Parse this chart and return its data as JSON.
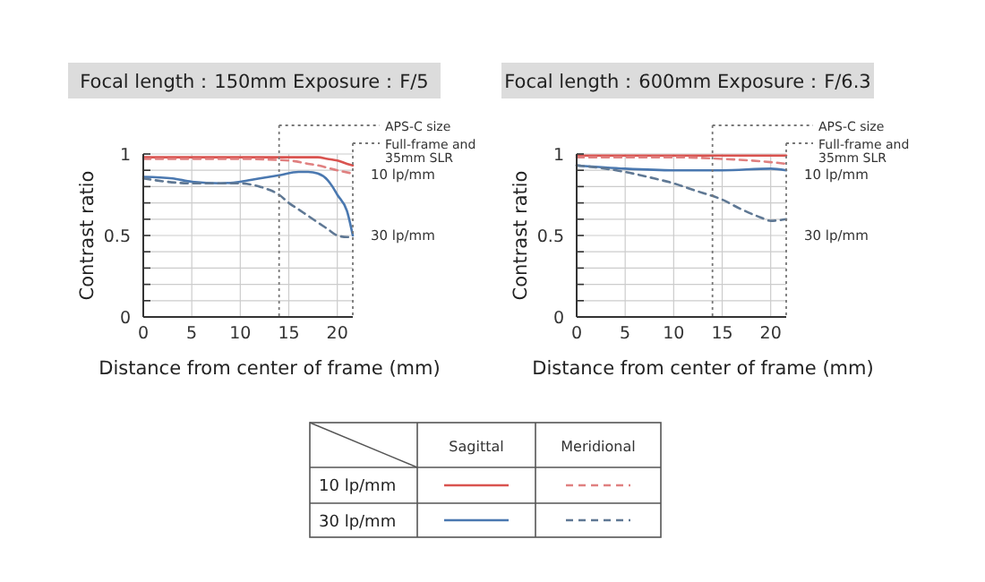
{
  "chart_data": [
    {
      "type": "line",
      "title": "Focal length：150mm  Exposure：F/5",
      "xlabel": "Distance from center of frame (mm)",
      "ylabel": "Contrast ratio",
      "xlim": [
        0,
        21.6
      ],
      "xticks": [
        0,
        5,
        10,
        15,
        20
      ],
      "ylim": [
        0,
        1
      ],
      "yticks": [
        0,
        {
          "value": 0.1,
          "label": null
        },
        {
          "value": 0.2,
          "label": null
        },
        {
          "value": 0.3,
          "label": null
        },
        {
          "value": 0.4,
          "label": null
        },
        0.5,
        {
          "value": 0.6,
          "label": null
        },
        {
          "value": 0.7,
          "label": null
        },
        {
          "value": 0.8,
          "label": null
        },
        {
          "value": 0.9,
          "label": null
        },
        1
      ],
      "grid": true,
      "ref_lines": [
        {
          "axis": "x",
          "value": 14,
          "label": "APS-C size",
          "line_style": "dotted",
          "color": "#777777"
        },
        {
          "axis": "x",
          "value": 21.6,
          "label": "Full-frame and 35mm SLR",
          "line_style": "dotted",
          "color": "#777777"
        }
      ],
      "annotations": [
        "10 lp/mm",
        "30 lp/mm"
      ],
      "series": [
        {
          "color": "#d9534f",
          "line_style": "solid",
          "x": [
            0,
            5,
            10,
            15,
            18,
            19,
            20,
            21,
            21.6
          ],
          "values": [
            0.98,
            0.98,
            0.98,
            0.98,
            0.98,
            0.97,
            0.96,
            0.94,
            0.93
          ]
        },
        {
          "color": "#e08080",
          "line_style": "dashed",
          "x": [
            0,
            5,
            10,
            15,
            17,
            18,
            20,
            21.6
          ],
          "values": [
            0.97,
            0.97,
            0.97,
            0.96,
            0.94,
            0.93,
            0.9,
            0.88
          ]
        },
        {
          "color": "#4a78b0",
          "line_style": "solid",
          "x": [
            0,
            3,
            5,
            8,
            10,
            12,
            14,
            16,
            17,
            18,
            19,
            19.5,
            20,
            21,
            21.6
          ],
          "values": [
            0.86,
            0.85,
            0.83,
            0.82,
            0.83,
            0.85,
            0.87,
            0.89,
            0.89,
            0.88,
            0.84,
            0.8,
            0.75,
            0.65,
            0.5
          ]
        },
        {
          "color": "#5f7894",
          "line_style": "dashed",
          "x": [
            0,
            5,
            10,
            12,
            13,
            14,
            15,
            16,
            17,
            18,
            19,
            20,
            21,
            21.6
          ],
          "values": [
            0.85,
            0.82,
            0.82,
            0.8,
            0.78,
            0.75,
            0.7,
            0.66,
            0.62,
            0.58,
            0.54,
            0.5,
            0.49,
            0.49
          ]
        }
      ]
    },
    {
      "type": "line",
      "title": "Focal length：600mm  Exposure：F/6.3",
      "xlabel": "Distance from center of frame (mm)",
      "ylabel": "Contrast ratio",
      "xlim": [
        0,
        21.6
      ],
      "xticks": [
        0,
        5,
        10,
        15,
        20
      ],
      "ylim": [
        0,
        1
      ],
      "yticks": [
        0,
        {
          "value": 0.1,
          "label": null
        },
        {
          "value": 0.2,
          "label": null
        },
        {
          "value": 0.3,
          "label": null
        },
        {
          "value": 0.4,
          "label": null
        },
        0.5,
        {
          "value": 0.6,
          "label": null
        },
        {
          "value": 0.7,
          "label": null
        },
        {
          "value": 0.8,
          "label": null
        },
        {
          "value": 0.9,
          "label": null
        },
        1
      ],
      "grid": true,
      "ref_lines": [
        {
          "axis": "x",
          "value": 14,
          "label": "APS-C size",
          "line_style": "dotted",
          "color": "#777777"
        },
        {
          "axis": "x",
          "value": 21.6,
          "label": "Full-frame and 35mm SLR",
          "line_style": "dotted",
          "color": "#777777"
        }
      ],
      "annotations": [
        "10 lp/mm",
        "30 lp/mm"
      ],
      "series": [
        {
          "color": "#d9534f",
          "line_style": "solid",
          "x": [
            0,
            5,
            10,
            15,
            20,
            21.6
          ],
          "values": [
            0.99,
            0.99,
            0.99,
            0.99,
            0.99,
            0.99
          ]
        },
        {
          "color": "#e08080",
          "line_style": "dashed",
          "x": [
            0,
            5,
            10,
            15,
            20,
            21.6
          ],
          "values": [
            0.98,
            0.98,
            0.98,
            0.97,
            0.95,
            0.94
          ]
        },
        {
          "color": "#4a78b0",
          "line_style": "solid",
          "x": [
            0,
            5,
            10,
            15,
            20,
            21.6
          ],
          "values": [
            0.93,
            0.91,
            0.9,
            0.9,
            0.91,
            0.9
          ]
        },
        {
          "color": "#5f7894",
          "line_style": "dashed",
          "x": [
            0,
            3,
            5,
            8,
            10,
            12,
            15,
            17,
            19,
            20,
            21.6
          ],
          "values": [
            0.93,
            0.91,
            0.89,
            0.85,
            0.82,
            0.78,
            0.72,
            0.66,
            0.61,
            0.59,
            0.6
          ]
        }
      ]
    },
    {
      "type": "other",
      "categories": [
        "Sagittal",
        "Meridional"
      ],
      "y_categories": [
        "10 lp/mm",
        "30 lp/mm"
      ]
    }
  ]
}
